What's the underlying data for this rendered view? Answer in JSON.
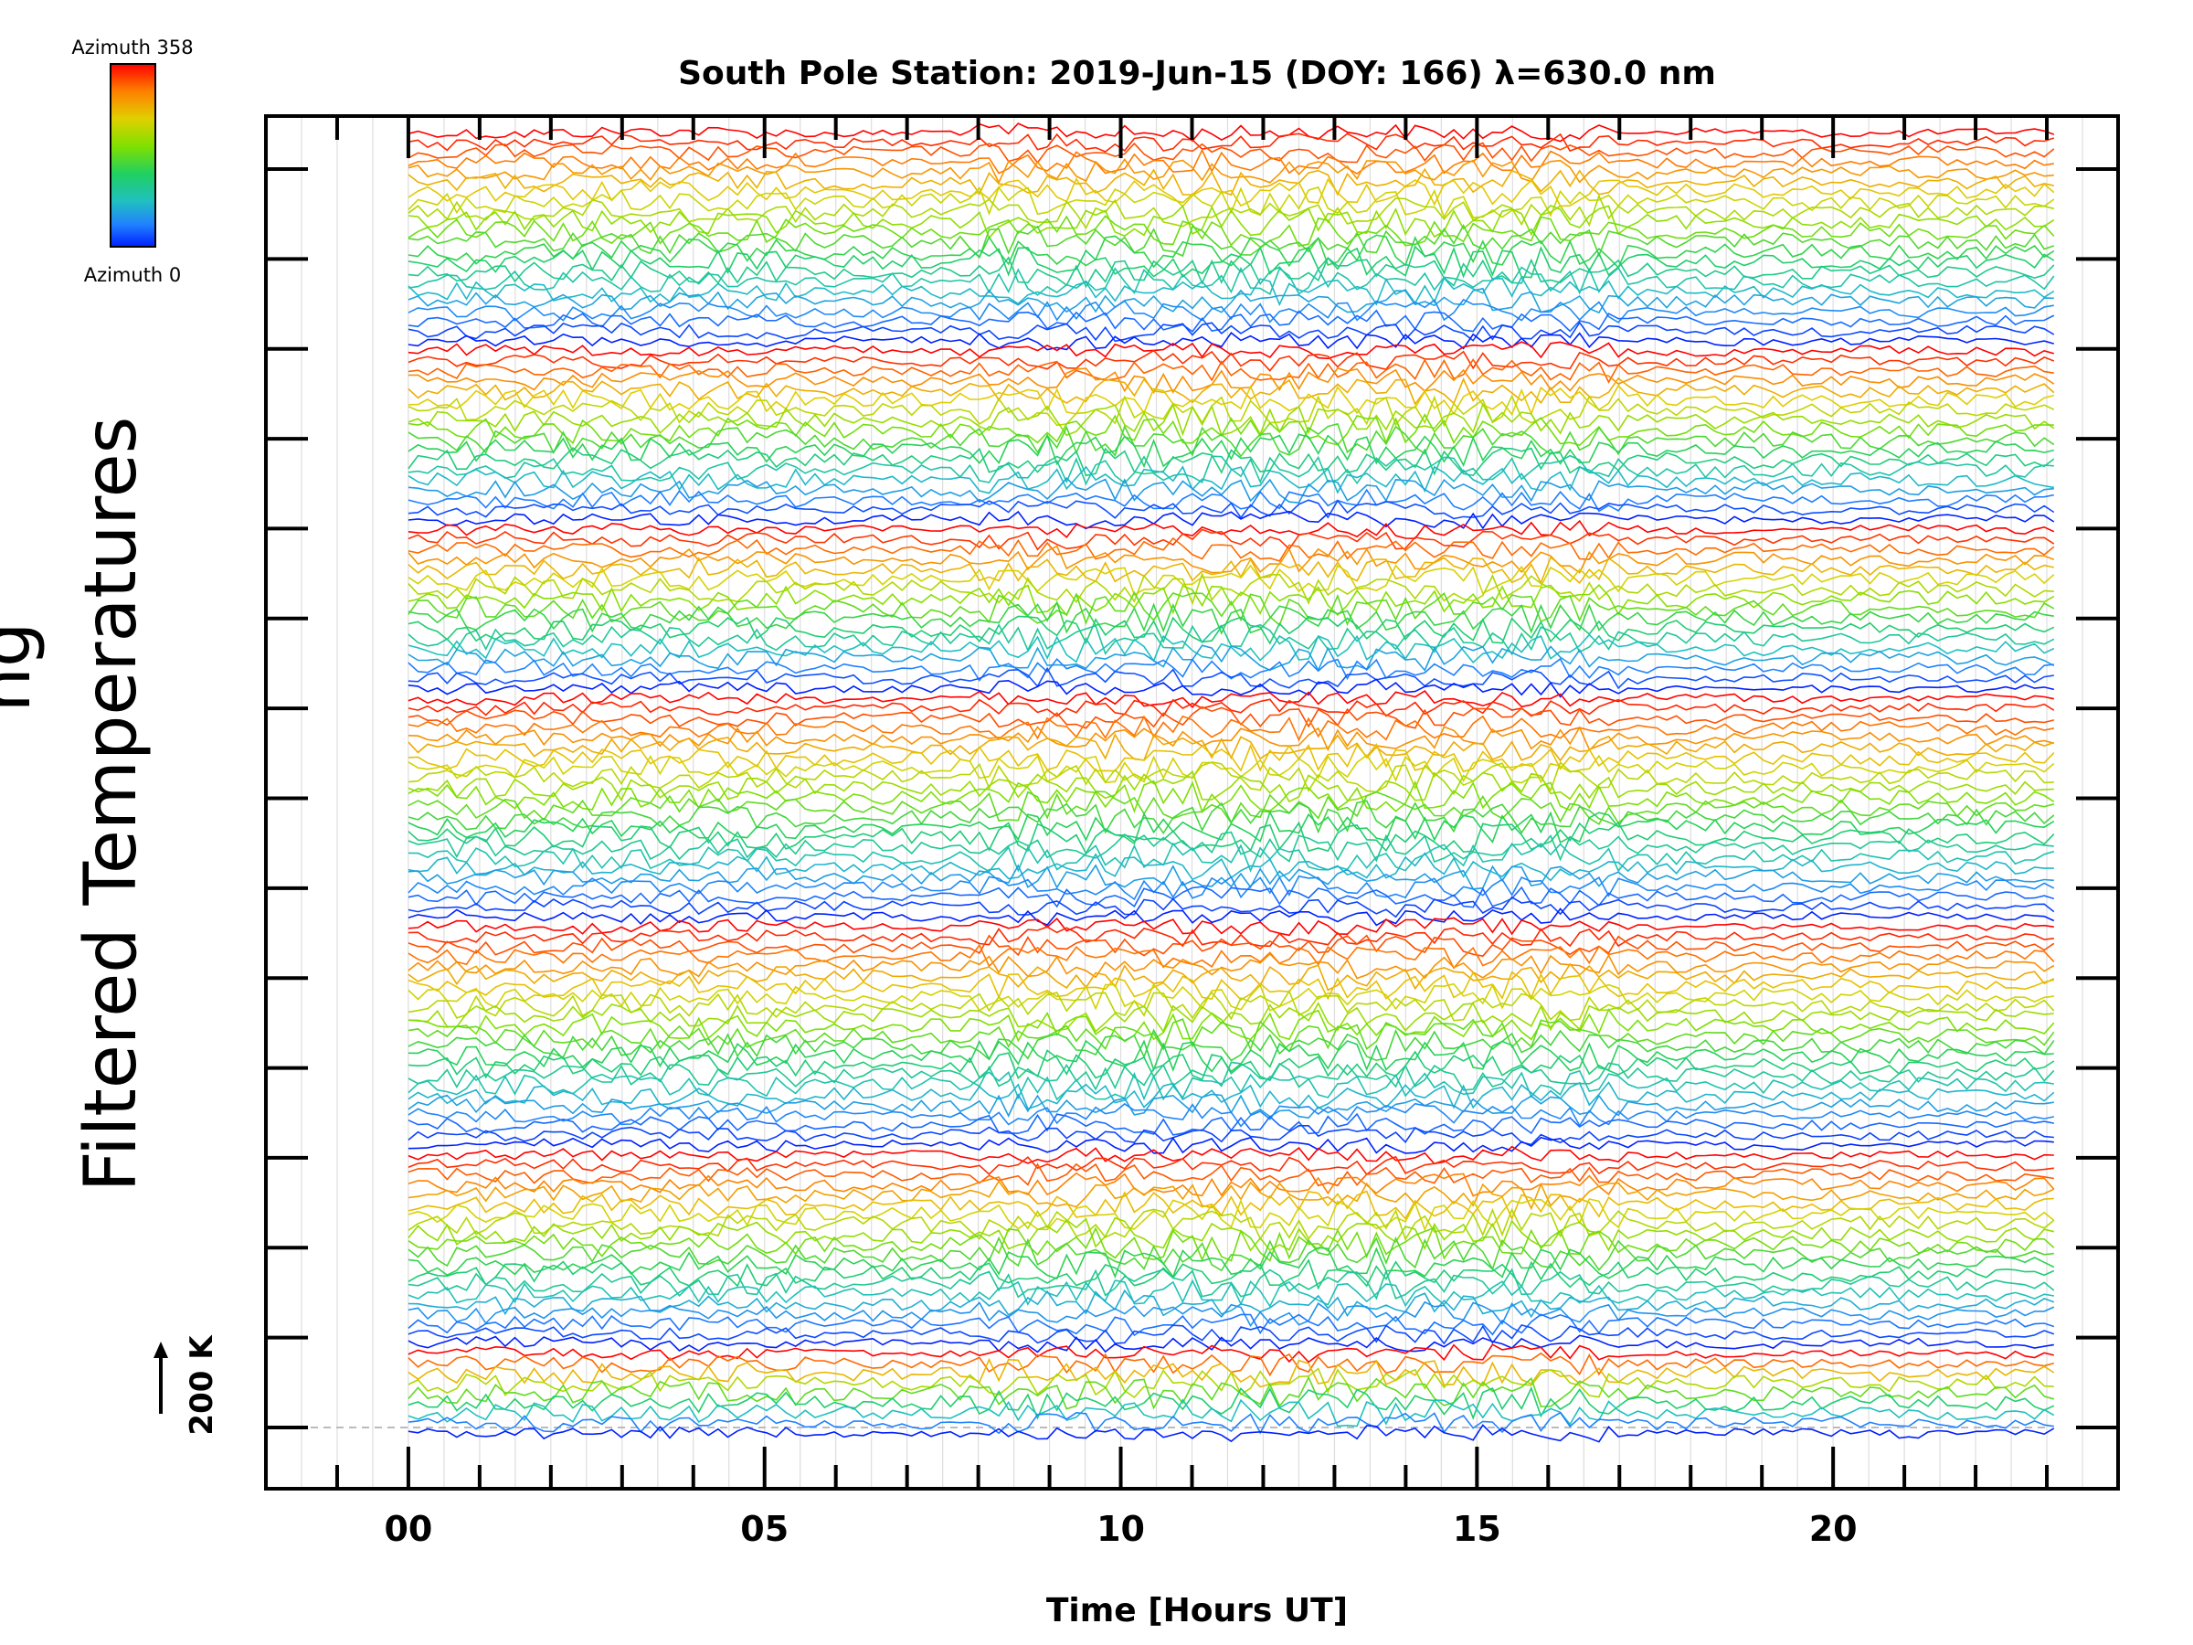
{
  "colorbar": {
    "top_label": "Azimuth  358",
    "bottom_label": "Azimuth  0",
    "colors": [
      "#ff0000",
      "#ff8000",
      "#e0d000",
      "#80e000",
      "#20d060",
      "#20c0c0",
      "#2080ff",
      "#0020ff"
    ]
  },
  "axes": {
    "ylabel": "Filtered Temperatures",
    "ylabel_partial": "ng",
    "scale_label": "200 K"
  },
  "chart_data": {
    "type": "line",
    "title": "South Pole Station: 2019-Jun-15 (DOY: 166) λ=630.0 nm",
    "xlabel": "Time [Hours UT]",
    "ylabel": "Filtered Temperatures",
    "xlim": [
      -2,
      24
    ],
    "x_ticks_major": [
      0,
      5,
      10,
      15,
      20
    ],
    "x_tick_labels": [
      "00",
      "05",
      "10",
      "15",
      "20"
    ],
    "data_x_range": [
      0,
      23.1
    ],
    "y_offset_ticks": 15,
    "scale_bar_K": 200,
    "series_count": 132,
    "grid": true,
    "colorbar_range": [
      0,
      358
    ],
    "colorbar_label": "Azimuth"
  }
}
